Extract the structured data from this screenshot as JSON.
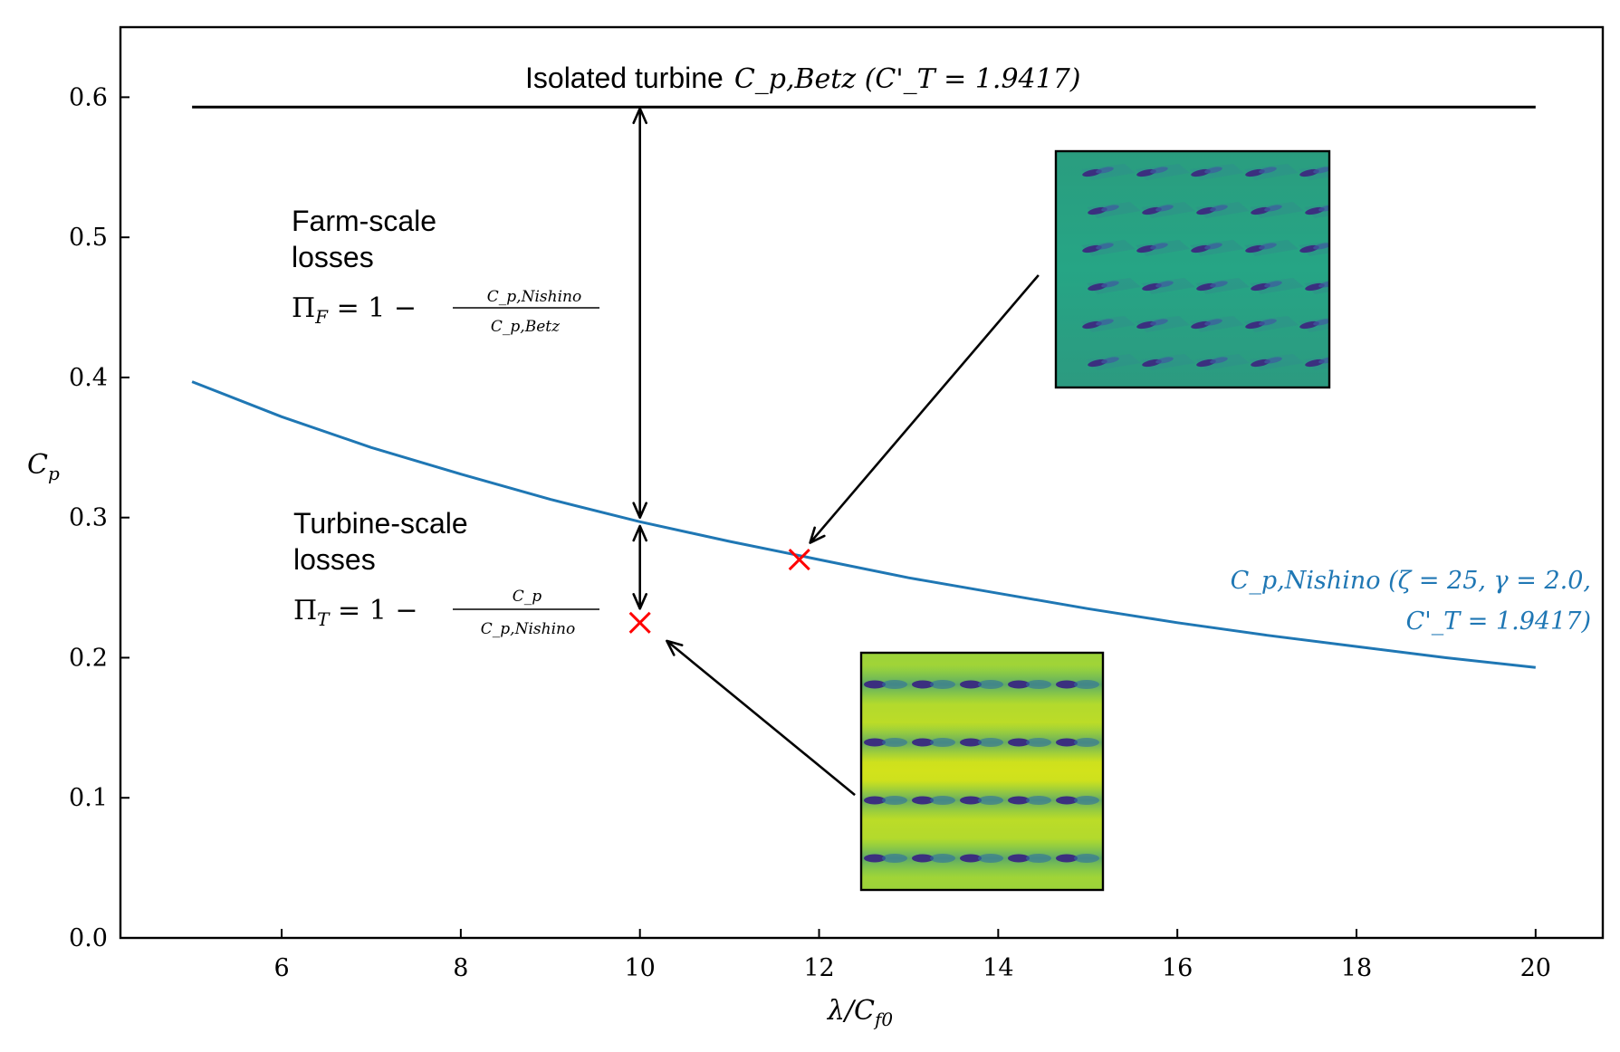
{
  "chart_data": {
    "type": "line",
    "xlabel": "λ/C_f0",
    "ylabel": "C_p",
    "xlim": [
      4.2,
      20.75
    ],
    "ylim": [
      0.0,
      0.65
    ],
    "xticks": [
      6,
      8,
      10,
      12,
      14,
      16,
      18,
      20
    ],
    "xtick_labels": [
      "6",
      "8",
      "10",
      "12",
      "14",
      "16",
      "18",
      "20"
    ],
    "yticks": [
      0.0,
      0.1,
      0.2,
      0.3,
      0.4,
      0.5,
      0.6
    ],
    "ytick_labels": [
      "0.0",
      "0.1",
      "0.2",
      "0.3",
      "0.4",
      "0.5",
      "0.6"
    ],
    "grid": false,
    "series": [
      {
        "name": "C_p,Nishino (ζ = 25, γ = 2.0, C'_T = 1.9417)",
        "color": "#1f77b4",
        "x": [
          5,
          6,
          7,
          8,
          9,
          10,
          11,
          12,
          13,
          14,
          15,
          16,
          17,
          18,
          19,
          20
        ],
        "y": [
          0.397,
          0.372,
          0.35,
          0.331,
          0.313,
          0.297,
          0.283,
          0.27,
          0.257,
          0.246,
          0.235,
          0.225,
          0.216,
          0.208,
          0.2,
          0.193
        ]
      },
      {
        "name": "Isolated turbine C_p,Betz (C'_T = 1.9417)",
        "color": "#000000",
        "x": [
          5,
          20
        ],
        "y": [
          0.593,
          0.593
        ]
      }
    ],
    "markers": [
      {
        "x": 10.0,
        "y": 0.225,
        "symbol": "x",
        "color": "#ff0000"
      },
      {
        "x": 11.78,
        "y": 0.27,
        "symbol": "x",
        "color": "#ff0000"
      }
    ],
    "annotations": {
      "betz_label_text": "Isolated turbine",
      "betz_label_math": "C_p,Betz (C'_T = 1.9417)",
      "farm_title_line1": "Farm-scale",
      "farm_title_line2": "losses",
      "farm_formula_lhs": "Π",
      "farm_formula_lhs_sub": "F",
      "farm_formula_mid": " = 1 − ",
      "farm_formula_num": "C_p,Nishino",
      "farm_formula_den": "C_p,Betz",
      "turbine_title_line1": "Turbine-scale",
      "turbine_title_line2": "losses",
      "turbine_formula_lhs": "Π",
      "turbine_formula_lhs_sub": "T",
      "turbine_formula_mid": " = 1 − ",
      "turbine_formula_num": "C_p",
      "turbine_formula_den": "C_p,Nishino",
      "nishino_label_line1": "C_p,Nishino (ζ = 25, γ = 2.0,",
      "nishino_label_line2": "C'_T = 1.9417)"
    },
    "arrows": [
      {
        "from": [
          10.0,
          0.592
        ],
        "to": [
          10.0,
          0.3
        ],
        "style": "double"
      },
      {
        "from": [
          10.0,
          0.294
        ],
        "to": [
          10.0,
          0.235
        ],
        "style": "double"
      },
      {
        "from": [
          14.45,
          0.473
        ],
        "to": [
          11.9,
          0.282
        ],
        "style": "single"
      },
      {
        "from": [
          12.4,
          0.102
        ],
        "to": [
          10.3,
          0.212
        ],
        "style": "single"
      }
    ],
    "insets": [
      {
        "name": "staggered-farm-flow-field",
        "colormap": "viridis",
        "pattern": "staggered"
      },
      {
        "name": "aligned-farm-flow-field",
        "colormap": "viridis",
        "pattern": "aligned"
      }
    ]
  }
}
